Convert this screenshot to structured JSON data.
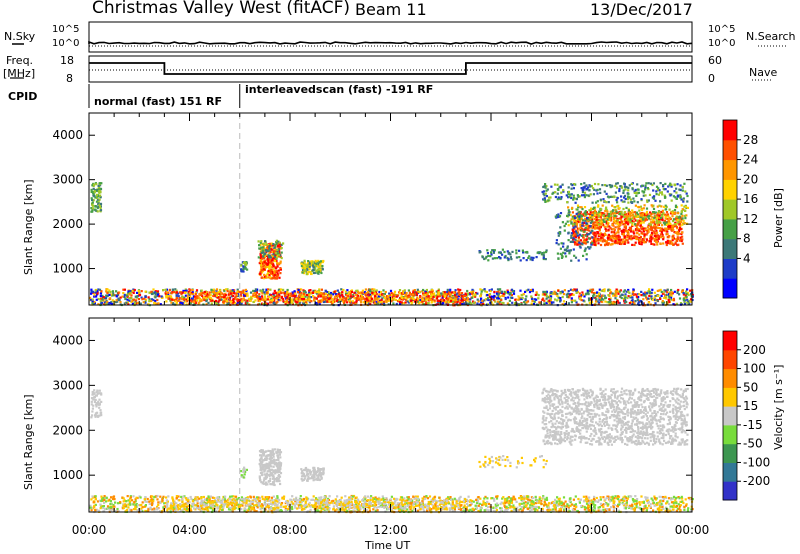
{
  "header": {
    "station": "Christmas Valley West (fitACF)",
    "beam": "Beam 11",
    "date": "13/Dec/2017"
  },
  "top_panels": {
    "nsky_label": "N.Sky",
    "nsky_ticks": [
      "10^5",
      "10^0"
    ],
    "nsearch_label": "N.Search",
    "nsearch_ticks": [
      "10^5",
      "10^0"
    ],
    "freq_label_line1": "Freq.",
    "freq_label_line2": "[MHz]",
    "freq_ticks": [
      "18",
      "8"
    ],
    "nave_label": "Nave",
    "nave_ticks": [
      "60",
      "0"
    ],
    "cpid_label": "CPID",
    "cpid_modes": [
      "normal (fast) 151 RF",
      "interleavedscan (fast) -191 RF"
    ]
  },
  "chart_data": [
    {
      "type": "heatmap",
      "name": "power",
      "ylabel": "Slant Range [km]",
      "xlabel": "",
      "yticks": [
        "4000",
        "3000",
        "2000",
        "1000"
      ],
      "ylim": [
        180,
        4500
      ],
      "xlim": [
        "00:00",
        "24:00"
      ],
      "colorbar": {
        "label": "Power [dB]",
        "ticks": [
          "28",
          "24",
          "20",
          "16",
          "12",
          "8",
          "4"
        ],
        "colors": [
          "#0000ff",
          "#1e3cc8",
          "#3c7878",
          "#46a046",
          "#a0c828",
          "#ffd200",
          "#ff9600",
          "#ff5000",
          "#ff0000"
        ]
      },
      "regions": [
        {
          "x": [
            0.0,
            0.4
          ],
          "y": [
            2300,
            2950
          ],
          "level": "12-16"
        },
        {
          "x": [
            6.0,
            6.2
          ],
          "y": [
            900,
            1200
          ],
          "level": "8-16"
        },
        {
          "x": [
            6.7,
            7.6
          ],
          "y": [
            800,
            1600
          ],
          "level": "20-30"
        },
        {
          "x": [
            8.4,
            9.3
          ],
          "y": [
            900,
            1200
          ],
          "level": "8-16"
        },
        {
          "x": [
            0.0,
            24.0
          ],
          "y": [
            180,
            650
          ],
          "level": "4-24"
        },
        {
          "x": [
            15.5,
            18.2
          ],
          "y": [
            1200,
            1500
          ],
          "level": "8-12"
        },
        {
          "x": [
            18.0,
            24.0
          ],
          "y": [
            1700,
            2950
          ],
          "level": "8-16"
        },
        {
          "x": [
            19.0,
            23.8
          ],
          "y": [
            1500,
            2300
          ],
          "level": "20-30"
        }
      ]
    },
    {
      "type": "heatmap",
      "name": "velocity",
      "ylabel": "Slant Range [km]",
      "xlabel": "Time UT",
      "xticks": [
        "00:00",
        "04:00",
        "08:00",
        "12:00",
        "16:00",
        "20:00",
        "00:00"
      ],
      "yticks": [
        "4000",
        "3000",
        "2000",
        "1000"
      ],
      "ylim": [
        180,
        4500
      ],
      "xlim": [
        "00:00",
        "24:00"
      ],
      "colorbar": {
        "label": "Velocity [m s⁻¹]",
        "ticks": [
          "200",
          "100",
          "50",
          "15",
          "-15",
          "-50",
          "-100",
          "-200"
        ],
        "colors": [
          "#3232c8",
          "#327896",
          "#3c9650",
          "#78dc3c",
          "#c8c8c8",
          "#ffc800",
          "#ff8c00",
          "#ff4600",
          "#ff0000"
        ]
      },
      "regions": [
        {
          "x": [
            0.0,
            0.4
          ],
          "y": [
            2300,
            2950
          ],
          "level": "ground"
        },
        {
          "x": [
            6.7,
            7.6
          ],
          "y": [
            800,
            1600
          ],
          "level": "ground"
        },
        {
          "x": [
            8.4,
            9.3
          ],
          "y": [
            900,
            1200
          ],
          "level": "ground"
        },
        {
          "x": [
            0.0,
            24.0
          ],
          "y": [
            180,
            650
          ],
          "level": "-15 to -100"
        },
        {
          "x": [
            18.0,
            24.0
          ],
          "y": [
            1700,
            2950
          ],
          "level": "ground"
        }
      ]
    }
  ]
}
